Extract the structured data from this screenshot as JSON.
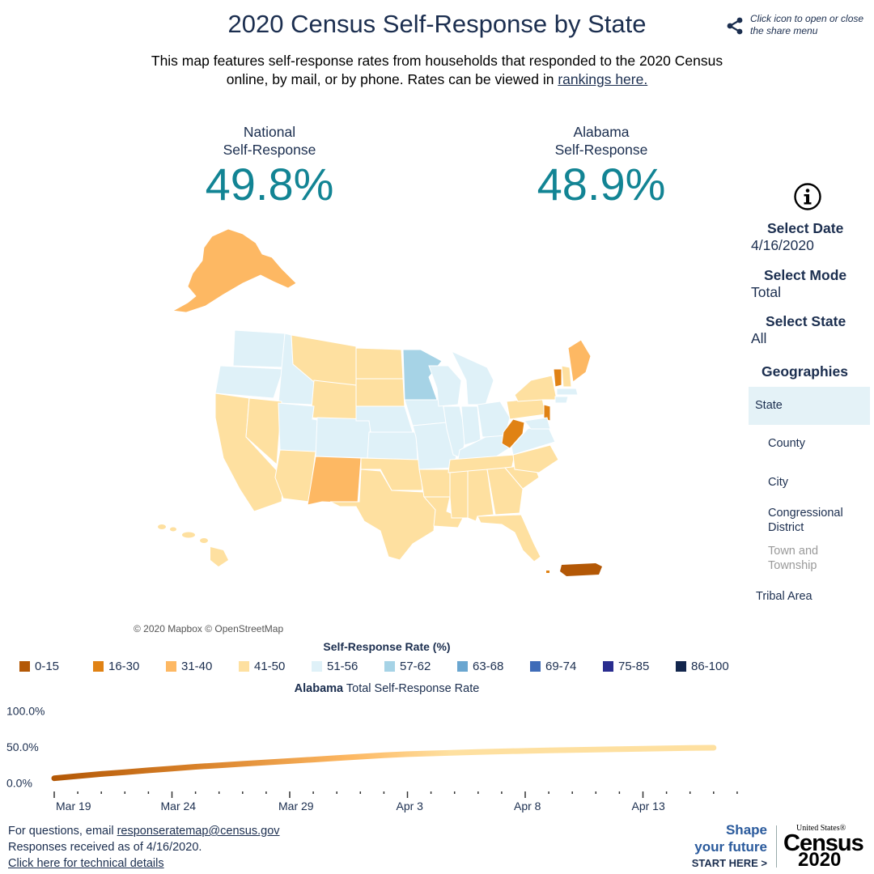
{
  "header": {
    "title": "2020 Census Self-Response by State",
    "share_hint": "Click icon to open or close the share menu",
    "subtitle_pre": "This map features self-response rates from households that responded to the 2020 Census online, by mail, or by phone. Rates can be viewed in ",
    "subtitle_link": "rankings here."
  },
  "kpis": {
    "national": {
      "label_line1": "National",
      "label_line2": "Self-Response",
      "value": "49.8%"
    },
    "state": {
      "label_line1": "Alabama",
      "label_line2": "Self-Response",
      "value": "48.9%"
    }
  },
  "map": {
    "attribution": "© 2020 Mapbox © OpenStreetMap",
    "icon": "us-states-choropleth"
  },
  "sidebar": {
    "info_icon": "info-icon",
    "date_label": "Select Date",
    "date_value": "4/16/2020",
    "mode_label": "Select Mode",
    "mode_value": "Total",
    "state_label": "Select State",
    "state_value": "All",
    "geo_label": "Geographies",
    "geographies": {
      "state": "State",
      "county": "County",
      "city": "City",
      "cd_line1": "Congressional",
      "cd_line2": "District",
      "town_line1": "Town and",
      "town_line2": "Township",
      "tribal": "Tribal Area"
    },
    "selected_geography": "State"
  },
  "legend": {
    "title": "Self-Response Rate (%)",
    "items": [
      {
        "label": "0-15",
        "color": "#b35806"
      },
      {
        "label": "16-30",
        "color": "#e08214"
      },
      {
        "label": "31-40",
        "color": "#fdb863"
      },
      {
        "label": "41-50",
        "color": "#fee0a0"
      },
      {
        "label": "51-56",
        "color": "#dff1f8"
      },
      {
        "label": "57-62",
        "color": "#a6d3e6"
      },
      {
        "label": "63-68",
        "color": "#6aa6d0"
      },
      {
        "label": "69-74",
        "color": "#3f6cb8"
      },
      {
        "label": "75-85",
        "color": "#2a2d8f"
      },
      {
        "label": "86-100",
        "color": "#13264d"
      }
    ]
  },
  "trend": {
    "title_bold": "Alabama",
    "title_rest": " Total Self-Response Rate"
  },
  "chart_data": {
    "type": "line",
    "title": "Alabama Total Self-Response Rate",
    "ylabel": "",
    "xlabel": "",
    "yticks": [
      "100.0%",
      "50.0%",
      "0.0%"
    ],
    "ylim": [
      0,
      100
    ],
    "xticks": [
      "Mar 19",
      "Mar 24",
      "Mar 29",
      "Apr 3",
      "Apr 8",
      "Apr 13"
    ],
    "x": [
      "Mar 19",
      "Mar 20",
      "Mar 21",
      "Mar 22",
      "Mar 23",
      "Mar 24",
      "Mar 25",
      "Mar 26",
      "Mar 27",
      "Mar 28",
      "Mar 29",
      "Mar 30",
      "Mar 31",
      "Apr 1",
      "Apr 2",
      "Apr 3",
      "Apr 4",
      "Apr 5",
      "Apr 6",
      "Apr 7",
      "Apr 8",
      "Apr 9",
      "Apr 10",
      "Apr 11",
      "Apr 12",
      "Apr 13",
      "Apr 14",
      "Apr 15",
      "Apr 16"
    ],
    "series": [
      {
        "values": [
          6.5,
          9.5,
          12.5,
          15,
          17.5,
          20,
          22.5,
          24.5,
          26.5,
          28.5,
          30.5,
          32.5,
          34.5,
          36.5,
          38.5,
          40,
          41,
          42,
          43,
          43.8,
          44.5,
          45.2,
          45.8,
          46.4,
          47,
          47.5,
          48,
          48.5,
          48.9
        ]
      }
    ],
    "grid": false
  },
  "footer": {
    "question_pre": "For questions, email ",
    "email": "responseratemap@census.gov",
    "received": "Responses received as of 4/16/2020.",
    "tech_link": "Click here for technical details"
  },
  "promo": {
    "line1": "Shape",
    "line2": "your future",
    "line3": "START HERE >",
    "us": "United States®",
    "census": "Census",
    "year": "2020"
  }
}
